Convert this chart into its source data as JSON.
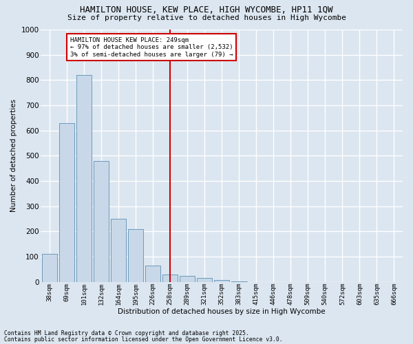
{
  "title": "HAMILTON HOUSE, KEW PLACE, HIGH WYCOMBE, HP11 1QW",
  "subtitle": "Size of property relative to detached houses in High Wycombe",
  "xlabel": "Distribution of detached houses by size in High Wycombe",
  "ylabel": "Number of detached properties",
  "categories": [
    "38sqm",
    "69sqm",
    "101sqm",
    "132sqm",
    "164sqm",
    "195sqm",
    "226sqm",
    "258sqm",
    "289sqm",
    "321sqm",
    "352sqm",
    "383sqm",
    "415sqm",
    "446sqm",
    "478sqm",
    "509sqm",
    "540sqm",
    "572sqm",
    "603sqm",
    "635sqm",
    "666sqm"
  ],
  "values": [
    110,
    630,
    820,
    480,
    250,
    210,
    65,
    30,
    25,
    15,
    8,
    3,
    0,
    0,
    0,
    0,
    0,
    0,
    0,
    0,
    0
  ],
  "bar_color": "#c8d8e8",
  "bar_edge_color": "#6a9abb",
  "vline_x_index": 7,
  "vline_color": "#cc0000",
  "annotation_text": "HAMILTON HOUSE KEW PLACE: 249sqm\n← 97% of detached houses are smaller (2,532)\n3% of semi-detached houses are larger (79) →",
  "annotation_box_color": "#cc0000",
  "background_color": "#dce6f0",
  "grid_color": "#ffffff",
  "fig_background_color": "#dce6f0",
  "footer_line1": "Contains HM Land Registry data © Crown copyright and database right 2025.",
  "footer_line2": "Contains public sector information licensed under the Open Government Licence v3.0.",
  "ylim": [
    0,
    1000
  ],
  "yticks": [
    0,
    100,
    200,
    300,
    400,
    500,
    600,
    700,
    800,
    900,
    1000
  ]
}
